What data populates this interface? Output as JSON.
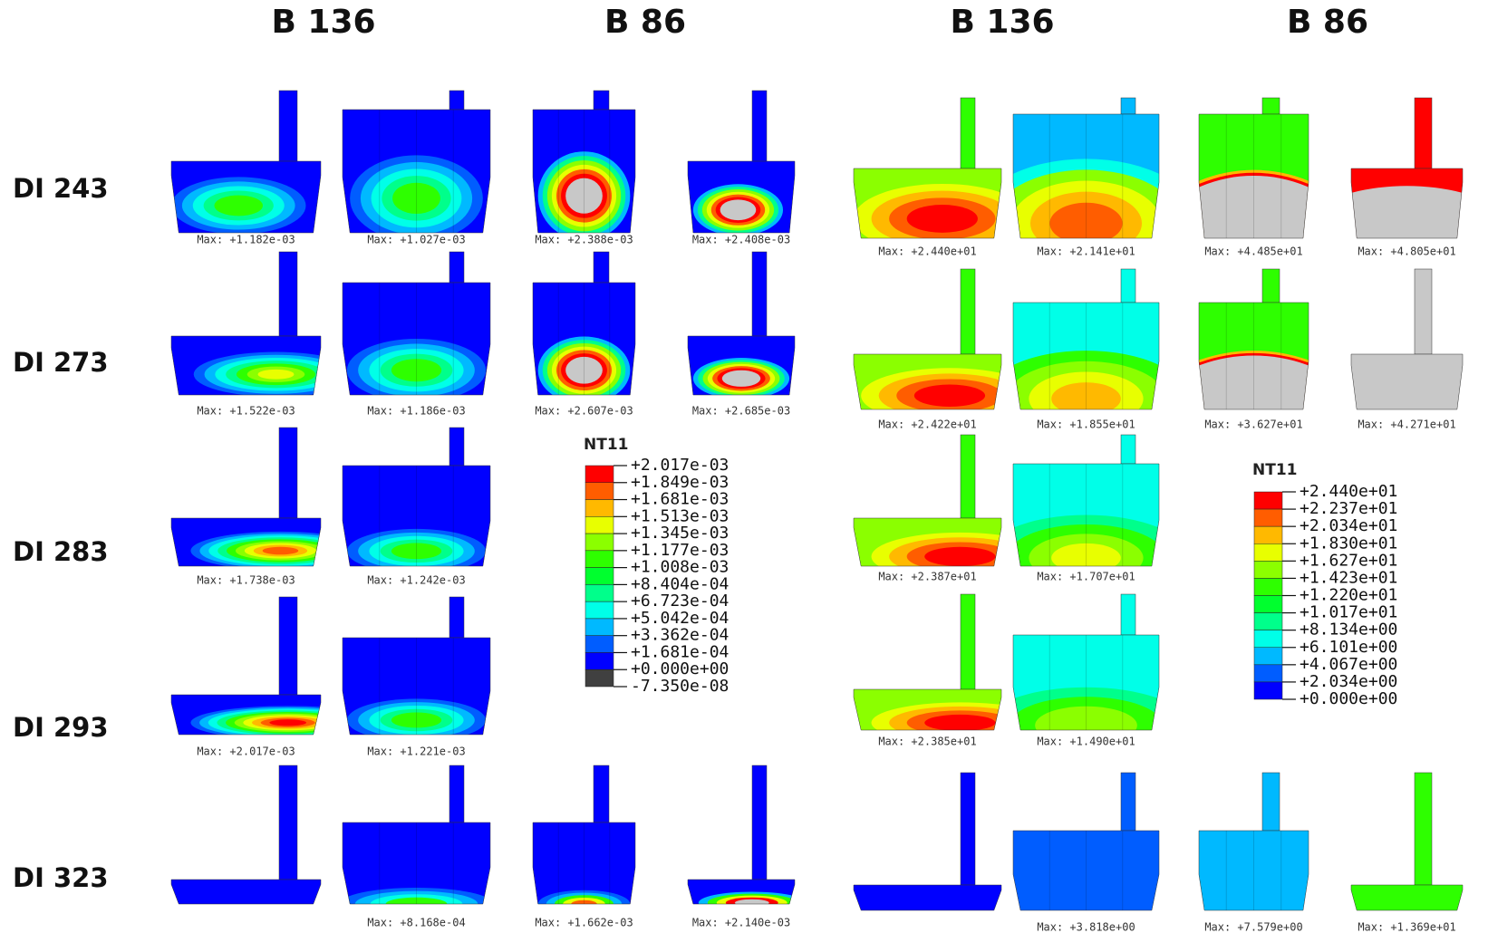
{
  "column_headers": [
    "B 136",
    "B 86",
    "B 136",
    "B 86"
  ],
  "rows": [
    {
      "label": "DI 243",
      "left": [
        "Max: +1.182e-03",
        "Max: +1.027e-03",
        "Max: +2.388e-03",
        "Max: +2.408e-03"
      ],
      "right": [
        "Max: +2.440e+01",
        "Max: +2.141e+01",
        "Max: +4.485e+01",
        "Max: +4.805e+01"
      ]
    },
    {
      "label": "DI 273",
      "left": [
        "Max: +1.522e-03",
        "Max: +1.186e-03",
        "Max: +2.607e-03",
        "Max: +2.685e-03"
      ],
      "right": [
        "Max: +2.422e+01",
        "Max: +1.855e+01",
        "Max: +3.627e+01",
        "Max: +4.271e+01"
      ]
    },
    {
      "label": "DI 283",
      "left": [
        "Max: +1.738e-03",
        "Max: +1.242e-03"
      ],
      "right": [
        "Max: +2.387e+01",
        "Max: +1.707e+01"
      ]
    },
    {
      "label": "DI 293",
      "left": [
        "Max: +2.017e-03",
        "Max: +1.221e-03"
      ],
      "right": [
        "Max: +2.385e+01",
        "Max: +1.490e+01"
      ]
    },
    {
      "label": "DI 323",
      "left": [
        null,
        "Max: +8.168e-04",
        "Max: +1.662e-03",
        "Max: +2.140e-03"
      ],
      "right": [
        null,
        "Max: +3.818e+00",
        "Max: +7.579e+00",
        "Max: +1.369e+01"
      ]
    }
  ],
  "legend_left": {
    "title": "NT11",
    "values": [
      "+2.017e-03",
      "+1.849e-03",
      "+1.681e-03",
      "+1.513e-03",
      "+1.345e-03",
      "+1.177e-03",
      "+1.008e-03",
      "+8.404e-04",
      "+6.723e-04",
      "+5.042e-04",
      "+3.362e-04",
      "+1.681e-04",
      "+0.000e+00",
      "-7.350e-08"
    ]
  },
  "legend_right": {
    "title": "NT11",
    "values": [
      "+2.440e+01",
      "+2.237e+01",
      "+2.034e+01",
      "+1.830e+01",
      "+1.627e+01",
      "+1.423e+01",
      "+1.220e+01",
      "+1.017e+01",
      "+8.134e+00",
      "+6.101e+00",
      "+4.067e+00",
      "+2.034e+00",
      "+0.000e+00"
    ]
  }
}
